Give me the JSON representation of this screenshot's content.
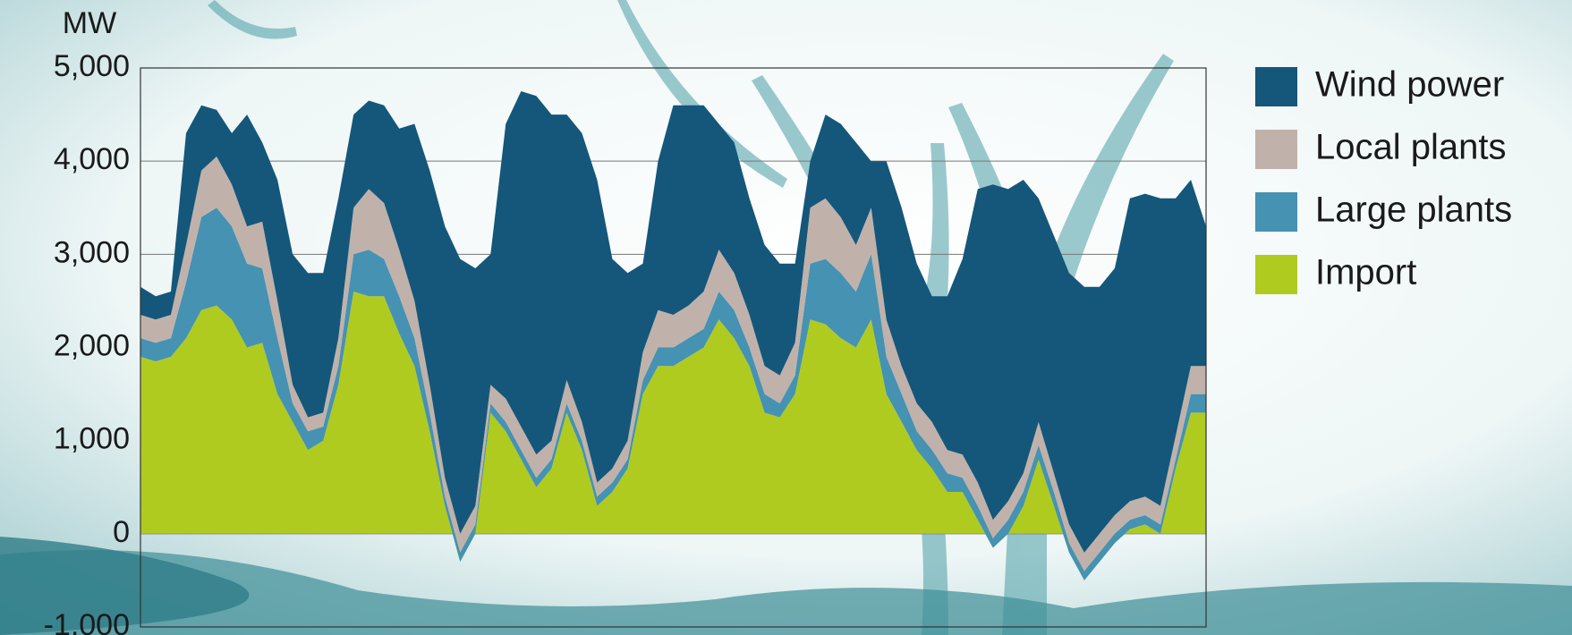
{
  "chart_data": {
    "type": "stacked_area",
    "y_label": "MW",
    "ylim": [
      -1000,
      5000
    ],
    "yticks": [
      {
        "value": -1000,
        "label": "-1,000"
      },
      0,
      {
        "value": 1000,
        "label": "1,000"
      },
      {
        "value": 2000,
        "label": "2,000"
      },
      {
        "value": 3000,
        "label": "3,000"
      },
      {
        "value": 4000,
        "label": "4,000"
      },
      {
        "value": 5000,
        "label": "5,000"
      }
    ],
    "grid": true,
    "legend": "right",
    "series": [
      {
        "name": "Import",
        "color": "#afcb1f",
        "values": [
          1900,
          1850,
          1900,
          2100,
          2400,
          2450,
          2300,
          2000,
          2050,
          1500,
          1200,
          900,
          1000,
          1600,
          2600,
          2550,
          2550,
          2150,
          1800,
          1100,
          300,
          -300,
          0,
          1300,
          1100,
          800,
          500,
          700,
          1300,
          900,
          300,
          450,
          700,
          1500,
          1800,
          1800,
          1900,
          2000,
          2300,
          2100,
          1800,
          1300,
          1250,
          1500,
          2300,
          2250,
          2100,
          2000,
          2300,
          1500,
          1200,
          900,
          700,
          450,
          450,
          150,
          -150,
          0,
          300,
          800,
          300,
          -200,
          -500,
          -300,
          -100,
          50,
          100,
          0,
          700,
          1300,
          1300
        ]
      },
      {
        "name": "Large plants",
        "color": "#4592b3",
        "values": [
          200,
          200,
          200,
          600,
          1000,
          1050,
          1000,
          900,
          800,
          600,
          200,
          200,
          150,
          200,
          400,
          500,
          400,
          400,
          300,
          200,
          100,
          100,
          100,
          100,
          100,
          100,
          100,
          100,
          100,
          100,
          100,
          100,
          100,
          150,
          200,
          200,
          200,
          200,
          300,
          300,
          200,
          200,
          150,
          200,
          600,
          700,
          700,
          600,
          700,
          400,
          300,
          200,
          200,
          200,
          150,
          150,
          100,
          150,
          150,
          150,
          150,
          100,
          100,
          100,
          100,
          100,
          100,
          100,
          100,
          200,
          200
        ]
      },
      {
        "name": "Local plants",
        "color": "#c0b2aa",
        "values": [
          250,
          250,
          250,
          400,
          500,
          550,
          450,
          400,
          500,
          400,
          200,
          150,
          150,
          300,
          500,
          650,
          600,
          500,
          400,
          300,
          200,
          200,
          200,
          200,
          250,
          250,
          250,
          200,
          250,
          200,
          150,
          150,
          200,
          300,
          400,
          350,
          350,
          400,
          450,
          400,
          350,
          300,
          300,
          350,
          600,
          650,
          600,
          500,
          500,
          400,
          300,
          300,
          300,
          250,
          250,
          250,
          200,
          200,
          200,
          250,
          200,
          200,
          200,
          200,
          200,
          200,
          200,
          200,
          250,
          300,
          300
        ]
      },
      {
        "name": "Wind power",
        "color": "#14577a",
        "values": [
          300,
          250,
          250,
          1200,
          700,
          500,
          550,
          1200,
          850,
          1300,
          1400,
          1550,
          1500,
          1500,
          1000,
          950,
          1050,
          1300,
          1900,
          2300,
          2700,
          2950,
          2550,
          1400,
          2950,
          3600,
          3850,
          3500,
          2850,
          3100,
          3250,
          2250,
          1800,
          950,
          1600,
          2250,
          2150,
          2000,
          1350,
          1400,
          1250,
          1300,
          1200,
          850,
          500,
          900,
          1000,
          1100,
          500,
          1700,
          1700,
          1500,
          1350,
          1650,
          2100,
          3150,
          3600,
          3350,
          3150,
          2400,
          2550,
          2700,
          2850,
          2650,
          2650,
          3250,
          3250,
          3300,
          2550,
          2000,
          1500
        ]
      }
    ]
  }
}
